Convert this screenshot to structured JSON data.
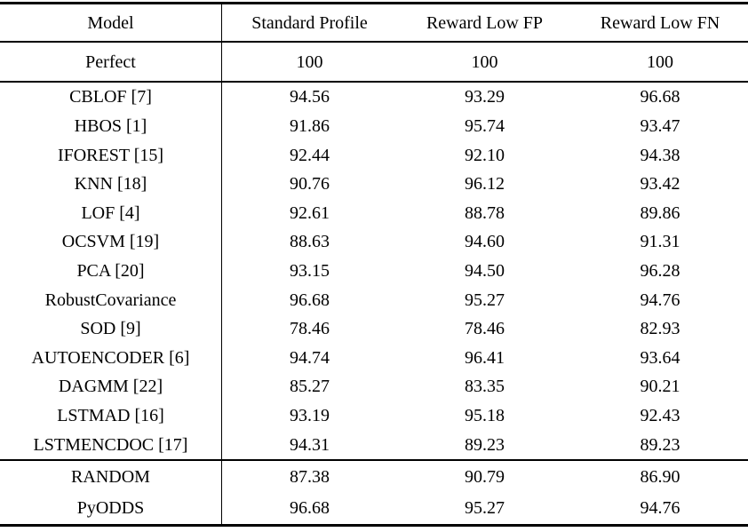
{
  "table": {
    "columns": [
      "Model",
      "Standard Profile",
      "Reward Low FP",
      "Reward Low FN"
    ],
    "perfect_row": {
      "model": "Perfect",
      "values": [
        "100",
        "100",
        "100"
      ]
    },
    "body_rows": [
      {
        "model": "CBLOF [7]",
        "values": [
          "94.56",
          "93.29",
          "96.68"
        ]
      },
      {
        "model": "HBOS [1]",
        "values": [
          "91.86",
          "95.74",
          "93.47"
        ]
      },
      {
        "model": "IFOREST [15]",
        "values": [
          "92.44",
          "92.10",
          "94.38"
        ]
      },
      {
        "model": "KNN [18]",
        "values": [
          "90.76",
          "96.12",
          "93.42"
        ]
      },
      {
        "model": "LOF [4]",
        "values": [
          "92.61",
          "88.78",
          "89.86"
        ]
      },
      {
        "model": "OCSVM [19]",
        "values": [
          "88.63",
          "94.60",
          "91.31"
        ]
      },
      {
        "model": "PCA [20]",
        "values": [
          "93.15",
          "94.50",
          "96.28"
        ]
      },
      {
        "model": "RobustCovariance",
        "values": [
          "96.68",
          "95.27",
          "94.76"
        ]
      },
      {
        "model": "SOD [9]",
        "values": [
          "78.46",
          "78.46",
          "82.93"
        ]
      },
      {
        "model": "AUTOENCODER [6]",
        "values": [
          "94.74",
          "96.41",
          "93.64"
        ]
      },
      {
        "model": "DAGMM [22]",
        "values": [
          "85.27",
          "83.35",
          "90.21"
        ]
      },
      {
        "model": "LSTMAD [16]",
        "values": [
          "93.19",
          "95.18",
          "92.43"
        ]
      },
      {
        "model": "LSTMENCDOC [17]",
        "values": [
          "94.31",
          "89.23",
          "89.23"
        ]
      }
    ],
    "footer_rows": [
      {
        "model": "RANDOM",
        "values": [
          "87.38",
          "90.79",
          "86.90"
        ]
      },
      {
        "model": "PyODDS",
        "values": [
          "96.68",
          "95.27",
          "94.76"
        ]
      }
    ],
    "colors": {
      "text": "#000000",
      "rule": "#000000",
      "background": "#ffffff"
    }
  }
}
